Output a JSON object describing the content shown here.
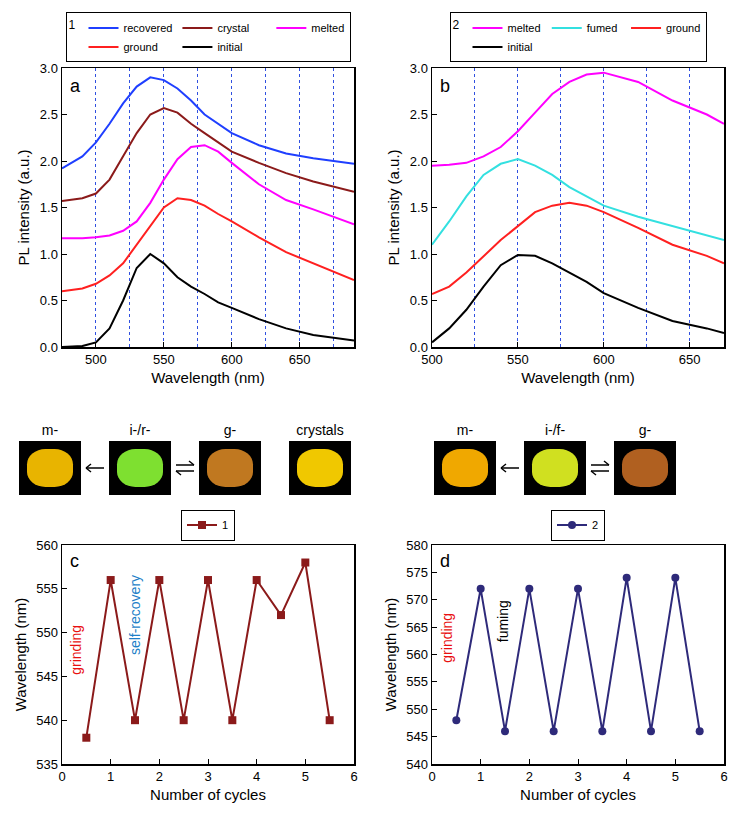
{
  "chart_data": [
    {
      "type": "line",
      "title": "a",
      "legend_title": "1",
      "x_label": "Wavelength (nm)",
      "y_label": "PL intensity (a.u.)",
      "x": [
        475,
        490,
        500,
        510,
        520,
        530,
        540,
        550,
        560,
        570,
        580,
        590,
        600,
        620,
        640,
        660,
        690
      ],
      "series": [
        {
          "name": "recovered",
          "color": "#1f3fff",
          "values": [
            1.92,
            2.05,
            2.2,
            2.4,
            2.62,
            2.8,
            2.9,
            2.87,
            2.78,
            2.65,
            2.5,
            2.4,
            2.3,
            2.17,
            2.08,
            2.03,
            1.97
          ]
        },
        {
          "name": "crystal",
          "color": "#8b1a1a",
          "values": [
            1.57,
            1.6,
            1.65,
            1.8,
            2.05,
            2.3,
            2.5,
            2.57,
            2.52,
            2.4,
            2.3,
            2.2,
            2.1,
            1.98,
            1.87,
            1.78,
            1.67
          ]
        },
        {
          "name": "melted",
          "color": "#ff00ff",
          "values": [
            1.17,
            1.17,
            1.18,
            1.2,
            1.25,
            1.35,
            1.55,
            1.8,
            2.02,
            2.15,
            2.17,
            2.1,
            1.98,
            1.75,
            1.58,
            1.48,
            1.32
          ]
        },
        {
          "name": "ground",
          "color": "#ff2020",
          "values": [
            0.6,
            0.63,
            0.68,
            0.77,
            0.9,
            1.1,
            1.3,
            1.5,
            1.6,
            1.58,
            1.52,
            1.43,
            1.35,
            1.18,
            1.02,
            0.9,
            0.72
          ]
        },
        {
          "name": "initial",
          "color": "#000000",
          "values": [
            0,
            0.01,
            0.05,
            0.2,
            0.5,
            0.85,
            1.0,
            0.9,
            0.75,
            0.65,
            0.57,
            0.48,
            0.42,
            0.3,
            0.2,
            0.13,
            0.07
          ]
        }
      ],
      "xlim": [
        475,
        690
      ],
      "xticks": [
        500,
        550,
        600,
        650
      ],
      "ylim": [
        0,
        3
      ],
      "yticks": [
        {
          "value": 0,
          "label": "0.0"
        },
        0.5,
        {
          "value": 1,
          "label": "1.0"
        },
        1.5,
        {
          "value": 2,
          "label": "2.0"
        },
        2.5,
        {
          "value": 3,
          "label": "3.0"
        }
      ],
      "grid": "x",
      "legend": "top",
      "line_style": "solid"
    },
    {
      "type": "line",
      "title": "b",
      "legend_title": "2",
      "x_label": "Wavelength (nm)",
      "y_label": "PL intensity (a.u.)",
      "x": [
        500,
        510,
        520,
        530,
        540,
        550,
        560,
        570,
        580,
        590,
        600,
        620,
        640,
        660,
        670
      ],
      "series": [
        {
          "name": "melted",
          "color": "#ff00ff",
          "values": [
            1.95,
            1.96,
            1.98,
            2.05,
            2.15,
            2.32,
            2.52,
            2.72,
            2.85,
            2.93,
            2.95,
            2.85,
            2.65,
            2.5,
            2.4
          ]
        },
        {
          "name": "fumed",
          "color": "#33e0e0",
          "values": [
            1.1,
            1.35,
            1.62,
            1.85,
            1.97,
            2.02,
            1.95,
            1.85,
            1.72,
            1.62,
            1.52,
            1.4,
            1.3,
            1.2,
            1.15
          ]
        },
        {
          "name": "ground",
          "color": "#ff2020",
          "values": [
            0.57,
            0.65,
            0.8,
            0.97,
            1.15,
            1.3,
            1.45,
            1.52,
            1.55,
            1.52,
            1.45,
            1.28,
            1.1,
            0.98,
            0.9
          ]
        },
        {
          "name": "initial",
          "color": "#000000",
          "values": [
            0.05,
            0.2,
            0.4,
            0.65,
            0.88,
            0.99,
            0.98,
            0.9,
            0.8,
            0.7,
            0.58,
            0.42,
            0.28,
            0.2,
            0.15
          ]
        }
      ],
      "xlim": [
        500,
        670
      ],
      "xticks": [
        500,
        550,
        600,
        650
      ],
      "ylim": [
        0,
        3
      ],
      "yticks": [
        {
          "value": 0,
          "label": "0.0"
        },
        0.5,
        {
          "value": 1,
          "label": "1.0"
        },
        1.5,
        {
          "value": 2,
          "label": "2.0"
        },
        2.5,
        {
          "value": 3,
          "label": "3.0"
        }
      ],
      "grid": "x",
      "legend": "top",
      "line_style": "solid"
    },
    {
      "type": "line",
      "title": "c",
      "x_label": "Number of cycles",
      "y_label": "Wavelength (nm)",
      "x": [
        0.5,
        1,
        1.5,
        2,
        2.5,
        3,
        3.5,
        4,
        4.5,
        5,
        5.5
      ],
      "series": [
        {
          "name": "1",
          "color": "#8b1a1a",
          "values": [
            538,
            556,
            540,
            556,
            540,
            556,
            540,
            556,
            552,
            558,
            540
          ]
        }
      ],
      "annotations": [
        {
          "text": "grinding",
          "x": 0.3,
          "y": 548,
          "color": "#e81010"
        },
        {
          "text": "self-recovery",
          "x": 1.5,
          "y": 552,
          "color": "#1e7fc8"
        }
      ],
      "xlim": [
        0,
        6
      ],
      "xticks": [
        0,
        1,
        2,
        3,
        4,
        5,
        6
      ],
      "ylim": [
        535,
        560
      ],
      "yticks": [
        535,
        540,
        545,
        550,
        555,
        560
      ],
      "grid": false,
      "legend": "top",
      "marker": "square",
      "line_style": "solid"
    },
    {
      "type": "line",
      "title": "d",
      "x_label": "Number of cycles",
      "y_label": "Wavelength (nm)",
      "x": [
        0.5,
        1,
        1.5,
        2,
        2.5,
        3,
        3.5,
        4,
        4.5,
        5,
        5.5
      ],
      "series": [
        {
          "name": "2",
          "color": "#2e2a7a",
          "values": [
            548,
            572,
            546,
            572,
            546,
            572,
            546,
            574,
            546,
            574,
            546
          ]
        }
      ],
      "annotations": [
        {
          "text": "grinding",
          "x": 0.3,
          "y": 563,
          "color": "#e81010"
        },
        {
          "text": "fuming",
          "x": 1.45,
          "y": 566,
          "color": "#000000"
        }
      ],
      "xlim": [
        0,
        6
      ],
      "xticks": [
        0,
        1,
        2,
        3,
        4,
        5,
        6
      ],
      "ylim": [
        540,
        580
      ],
      "yticks": [
        540,
        545,
        550,
        555,
        560,
        565,
        570,
        575,
        580
      ],
      "grid": false,
      "legend": "top",
      "marker": "circle",
      "line_style": "solid"
    }
  ],
  "photos": [
    [
      {
        "label": "m-",
        "color": "#e8b400"
      },
      {
        "label": "i-/r-",
        "color": "#7ee030"
      },
      {
        "label": "g-",
        "color": "#c07820"
      },
      {
        "label": "crystals",
        "color": "#f0c800"
      }
    ],
    [
      {
        "label": "m-",
        "color": "#f0a800"
      },
      {
        "label": "i-/f-",
        "color": "#d0e020"
      },
      {
        "label": "g-",
        "color": "#b06020"
      }
    ]
  ]
}
